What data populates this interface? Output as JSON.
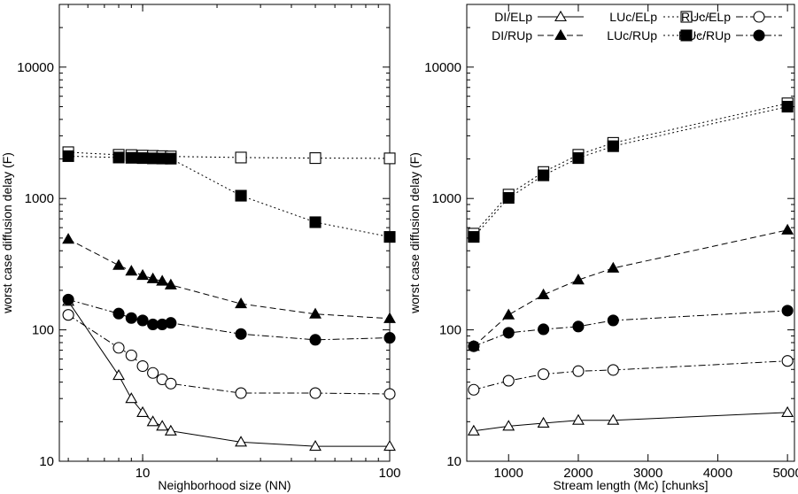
{
  "chart_data": [
    {
      "type": "line",
      "xlabel": "Neighborhood size (NN)",
      "ylabel": "worst case diffusion delay (F)",
      "xscale": "log",
      "yscale": "log",
      "xlim": [
        4.6,
        100
      ],
      "ylim": [
        10,
        30000
      ],
      "xticks": [
        10,
        100
      ],
      "yticks": [
        10,
        100,
        1000,
        10000
      ],
      "grid": false,
      "legend": "none",
      "series": [
        {
          "name": "DI/ELp",
          "marker": "triangle-open",
          "line": "solid",
          "x": [
            5,
            8,
            9,
            10,
            11,
            12,
            13,
            25,
            50,
            100
          ],
          "y": [
            165,
            45,
            30,
            23.5,
            20,
            18.5,
            17,
            14,
            13,
            13
          ]
        },
        {
          "name": "DI/RUp",
          "marker": "triangle-filled",
          "line": "dashed",
          "x": [
            5,
            8,
            9,
            10,
            11,
            12,
            13,
            25,
            50,
            100
          ],
          "y": [
            490,
            310,
            280,
            260,
            245,
            235,
            220,
            158,
            132,
            122
          ]
        },
        {
          "name": "LUc/ELp",
          "marker": "square-open",
          "line": "dotted",
          "x": [
            5,
            8,
            9,
            10,
            11,
            12,
            13,
            25,
            50,
            100
          ],
          "y": [
            2250,
            2150,
            2140,
            2120,
            2110,
            2100,
            2090,
            2050,
            2030,
            2020
          ]
        },
        {
          "name": "LUc/RUp",
          "marker": "square-filled",
          "line": "dotted",
          "x": [
            5,
            8,
            9,
            10,
            11,
            12,
            13,
            25,
            50,
            100
          ],
          "y": [
            2100,
            2050,
            2040,
            2030,
            2020,
            2015,
            2010,
            1050,
            660,
            510
          ]
        },
        {
          "name": "RUc/ELp",
          "marker": "circle-open",
          "line": "dashdot",
          "x": [
            5,
            8,
            9,
            10,
            11,
            12,
            13,
            25,
            50,
            100
          ],
          "y": [
            130,
            73,
            64,
            53,
            47,
            42,
            39,
            33,
            33,
            32.5
          ]
        },
        {
          "name": "RUc/RUp",
          "marker": "circle-filled",
          "line": "dashdot",
          "x": [
            5,
            8,
            9,
            10,
            11,
            12,
            13,
            25,
            50,
            100
          ],
          "y": [
            170,
            133,
            123,
            118,
            110,
            110,
            113,
            93,
            84,
            87
          ]
        }
      ]
    },
    {
      "type": "line",
      "xlabel": "Stream length (Mc) [chunks]",
      "ylabel": "worst case diffusion delay (F)",
      "xscale": "linear",
      "yscale": "log",
      "xlim": [
        400,
        5100
      ],
      "ylim": [
        10,
        30000
      ],
      "xticks": [
        1000,
        2000,
        3000,
        4000,
        5000
      ],
      "yticks": [
        10,
        100,
        1000,
        10000
      ],
      "grid": false,
      "legend": "top",
      "legend_entries": [
        "DI/ELp",
        "LUc/ELp",
        "RUc/ELp",
        "DI/RUp",
        "LUc/RUp",
        "RUc/RUp"
      ],
      "series": [
        {
          "name": "DI/ELp",
          "marker": "triangle-open",
          "line": "solid",
          "x": [
            500,
            1000,
            1500,
            2000,
            2500,
            5000
          ],
          "y": [
            17,
            18.5,
            19.5,
            20.5,
            20.5,
            23.5
          ]
        },
        {
          "name": "DI/RUp",
          "marker": "triangle-filled",
          "line": "dashed",
          "x": [
            500,
            1000,
            1500,
            2000,
            2500,
            5000
          ],
          "y": [
            75,
            130,
            185,
            240,
            295,
            575
          ]
        },
        {
          "name": "LUc/ELp",
          "marker": "square-open",
          "line": "dotted",
          "x": [
            500,
            1000,
            1500,
            2000,
            2500,
            5000
          ],
          "y": [
            540,
            1070,
            1590,
            2150,
            2650,
            5300
          ]
        },
        {
          "name": "LUc/RUp",
          "marker": "square-filled",
          "line": "dotted",
          "x": [
            500,
            1000,
            1500,
            2000,
            2500,
            5000
          ],
          "y": [
            510,
            1010,
            1500,
            2030,
            2500,
            5000
          ]
        },
        {
          "name": "RUc/ELp",
          "marker": "circle-open",
          "line": "dashdot",
          "x": [
            500,
            1000,
            1500,
            2000,
            2500,
            5000
          ],
          "y": [
            35,
            41,
            46,
            48.5,
            49.5,
            58
          ]
        },
        {
          "name": "RUc/RUp",
          "marker": "circle-filled",
          "line": "dashdot",
          "x": [
            500,
            1000,
            1500,
            2000,
            2500,
            5000
          ],
          "y": [
            75,
            95,
            101,
            106,
            118,
            140
          ]
        }
      ]
    }
  ]
}
